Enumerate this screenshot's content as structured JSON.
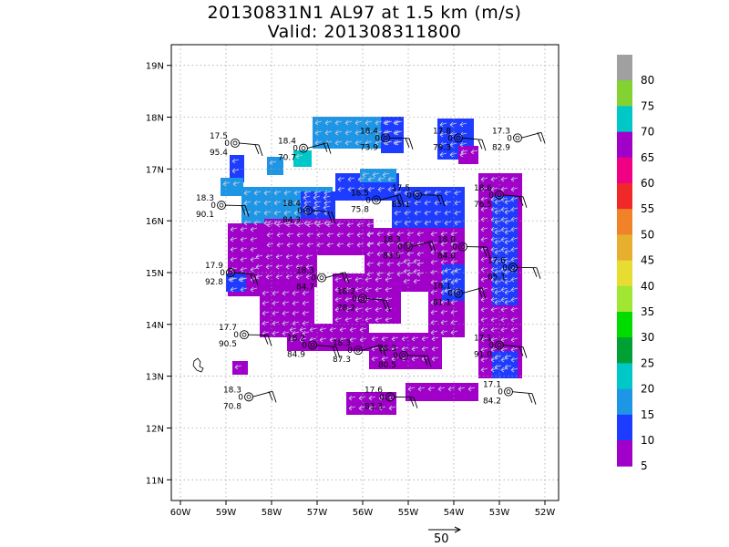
{
  "chart_data": {
    "type": "heatmap",
    "title": "20130831N1 AL97 at 1.5 km (m/s)",
    "subtitle": "Valid: 201308311800",
    "x_ticks": [
      "60W",
      "59W",
      "58W",
      "57W",
      "56W",
      "55W",
      "54W",
      "53W",
      "52W"
    ],
    "y_ticks": [
      "19N",
      "18N",
      "17N",
      "16N",
      "15N",
      "14N",
      "13N",
      "12N",
      "11N"
    ],
    "xlim": [
      -60.2,
      -51.7
    ],
    "ylim": [
      10.6,
      19.4
    ],
    "grid": true,
    "colorbar": {
      "labels": [
        "80",
        "75",
        "70",
        "65",
        "60",
        "55",
        "50",
        "45",
        "40",
        "35",
        "30",
        "25",
        "20",
        "15",
        "10",
        "5"
      ],
      "colors": [
        "#a0a0a0",
        "#82d232",
        "#00c8c8",
        "#a000c8",
        "#f00082",
        "#f02828",
        "#f08228",
        "#e6af2d",
        "#e6dc32",
        "#a0e632",
        "#00dc00",
        "#00a035",
        "#00c8c8",
        "#1e96e6",
        "#1e3cff",
        "#a000c8"
      ]
    },
    "stations": [
      {
        "lon": -58.8,
        "lat": 17.5,
        "speed": "17.5",
        "pressure": "95.4"
      },
      {
        "lon": -57.3,
        "lat": 17.4,
        "speed": "18.4",
        "pressure": "70.7"
      },
      {
        "lon": -55.5,
        "lat": 17.6,
        "speed": "18.4",
        "pressure": "73.9"
      },
      {
        "lon": -53.9,
        "lat": 17.6,
        "speed": "17.8",
        "pressure": "79.3"
      },
      {
        "lon": -52.6,
        "lat": 17.6,
        "speed": "17.3",
        "pressure": "82.9"
      },
      {
        "lon": -59.1,
        "lat": 16.3,
        "speed": "18.3",
        "pressure": "90.1"
      },
      {
        "lon": -57.2,
        "lat": 16.2,
        "speed": "18.4",
        "pressure": "84.3"
      },
      {
        "lon": -55.7,
        "lat": 16.4,
        "speed": "18.5",
        "pressure": "75.8"
      },
      {
        "lon": -54.8,
        "lat": 16.5,
        "speed": "17.5",
        "pressure": "85.1"
      },
      {
        "lon": -53.0,
        "lat": 16.5,
        "speed": "18.6",
        "pressure": "76.5"
      },
      {
        "lon": -55.0,
        "lat": 15.5,
        "speed": "18.3",
        "pressure": "83.5"
      },
      {
        "lon": -53.8,
        "lat": 15.5,
        "speed": "18.0",
        "pressure": "84.0"
      },
      {
        "lon": -58.9,
        "lat": 15.0,
        "speed": "17.9",
        "pressure": "92.8"
      },
      {
        "lon": -56.9,
        "lat": 14.9,
        "speed": "18.3",
        "pressure": "84.7"
      },
      {
        "lon": -52.7,
        "lat": 15.1,
        "speed": "17.6",
        "pressure": "65.1"
      },
      {
        "lon": -56.0,
        "lat": 14.5,
        "speed": "18.2",
        "pressure": "78.2"
      },
      {
        "lon": -53.9,
        "lat": 14.6,
        "speed": "18.1",
        "pressure": "81.1"
      },
      {
        "lon": -58.6,
        "lat": 13.8,
        "speed": "17.7",
        "pressure": "90.5"
      },
      {
        "lon": -57.1,
        "lat": 13.6,
        "speed": "18.2",
        "pressure": "84.9"
      },
      {
        "lon": -56.1,
        "lat": 13.5,
        "speed": "18.3",
        "pressure": "87.3"
      },
      {
        "lon": -55.1,
        "lat": 13.4,
        "speed": "18.3",
        "pressure": "80.5"
      },
      {
        "lon": -53.0,
        "lat": 13.6,
        "speed": "17.1",
        "pressure": "91.0"
      },
      {
        "lon": -58.5,
        "lat": 12.6,
        "speed": "18.3",
        "pressure": "70.8"
      },
      {
        "lon": -55.4,
        "lat": 12.6,
        "speed": "17.6",
        "pressure": "83.3"
      },
      {
        "lon": -52.8,
        "lat": 12.7,
        "speed": "17.1",
        "pressure": "84.2"
      }
    ],
    "reference_vector_label": "50"
  }
}
